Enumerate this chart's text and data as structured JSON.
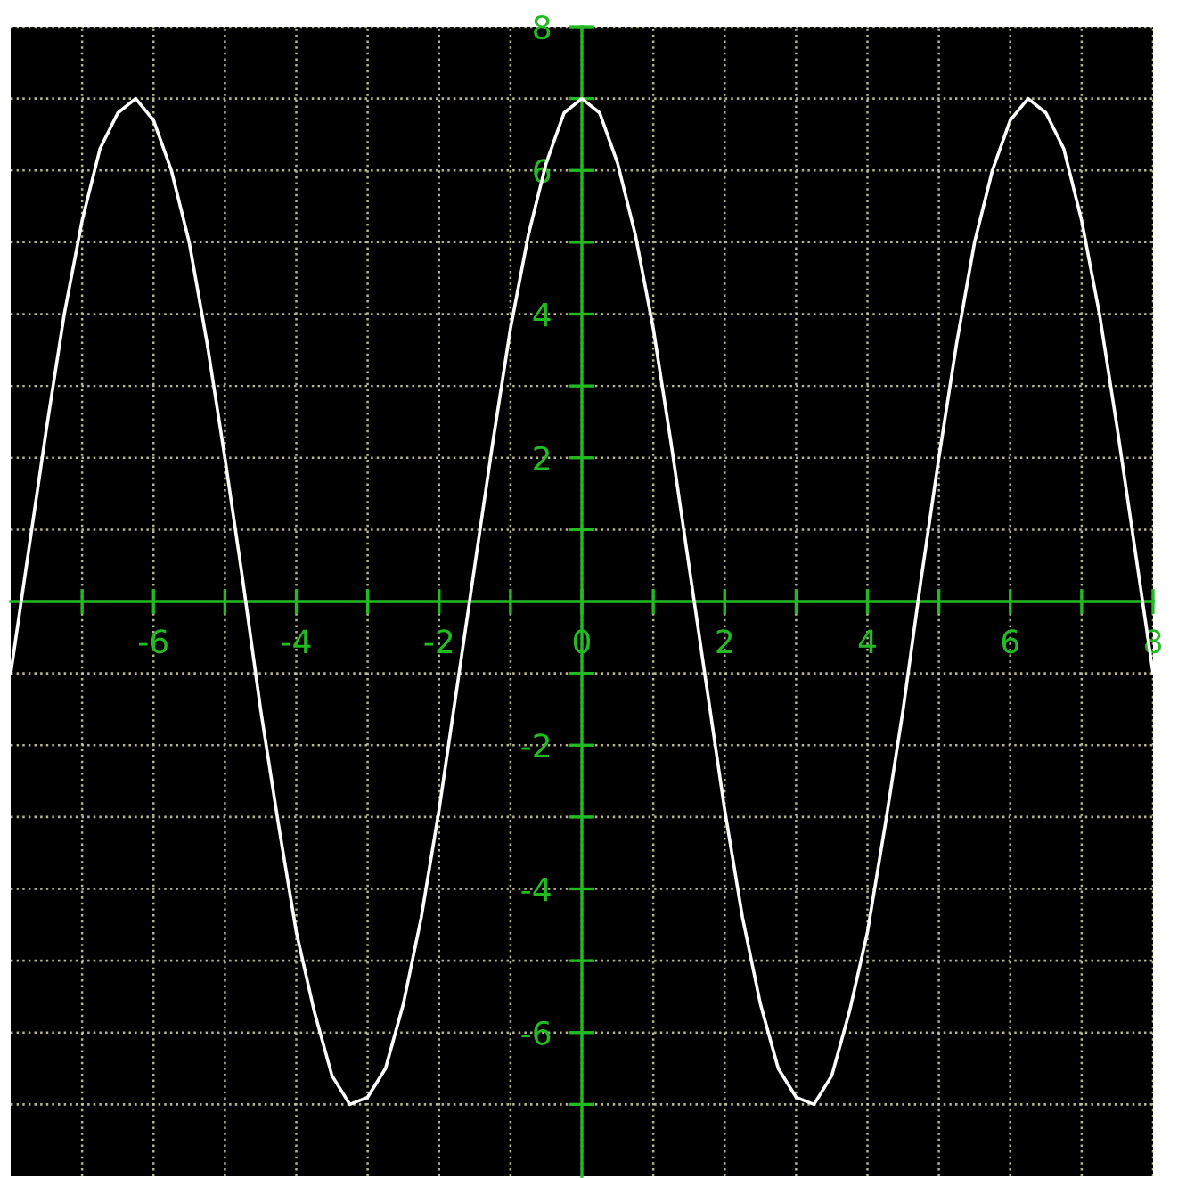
{
  "chart_data": {
    "type": "line",
    "x": [
      -8,
      -7.75,
      -7.5,
      -7.25,
      -7,
      -6.75,
      -6.5,
      -6.25,
      -6,
      -5.75,
      -5.5,
      -5.25,
      -5,
      -4.75,
      -4.5,
      -4.25,
      -4,
      -3.75,
      -3.5,
      -3.25,
      -3,
      -2.75,
      -2.5,
      -2.25,
      -2,
      -1.75,
      -1.5,
      -1.25,
      -1,
      -0.75,
      -0.5,
      -0.25,
      0,
      0.25,
      0.5,
      0.75,
      1,
      1.25,
      1.5,
      1.75,
      2,
      2.25,
      2.5,
      2.75,
      3,
      3.25,
      3.5,
      3.75,
      4,
      4.25,
      4.5,
      4.75,
      5,
      5.25,
      5.5,
      5.75,
      6,
      6.25,
      6.5,
      6.75,
      7,
      7.25,
      7.5,
      7.75,
      8
    ],
    "series": [
      {
        "color": "#ffffff",
        "values": [
          -1.0,
          0.7,
          2.4,
          4.0,
          5.3,
          6.3,
          6.8,
          7.0,
          6.7,
          6.0,
          5.0,
          3.6,
          2.0,
          0.3,
          -1.5,
          -3.1,
          -4.6,
          -5.7,
          -6.6,
          -7.0,
          -6.9,
          -6.5,
          -5.6,
          -4.4,
          -2.9,
          -1.2,
          0.5,
          2.2,
          3.8,
          5.1,
          6.1,
          6.8,
          7.0,
          6.8,
          6.1,
          5.1,
          3.8,
          2.2,
          0.5,
          -1.2,
          -2.9,
          -4.4,
          -5.6,
          -6.5,
          -6.9,
          -7.0,
          -6.6,
          -5.7,
          -4.6,
          -3.1,
          -1.5,
          0.3,
          2.0,
          3.6,
          5.0,
          6.0,
          6.7,
          7.0,
          6.8,
          6.3,
          5.3,
          4.0,
          2.4,
          0.7,
          -1.0
        ]
      }
    ],
    "xlim": [
      -8,
      8
    ],
    "ylim": [
      -8,
      8
    ],
    "xticks": [
      {
        "value": -7,
        "label": null
      },
      -6,
      {
        "value": -5,
        "label": null
      },
      -4,
      {
        "value": -3,
        "label": null
      },
      -2,
      {
        "value": -1,
        "label": null
      },
      0,
      {
        "value": 1,
        "label": null
      },
      2,
      {
        "value": 3,
        "label": null
      },
      4,
      {
        "value": 5,
        "label": null
      },
      6,
      {
        "value": 7,
        "label": null
      },
      8
    ],
    "yticks": [
      {
        "value": -7,
        "label": null
      },
      -6,
      {
        "value": -5,
        "label": null
      },
      -4,
      {
        "value": -3,
        "label": null
      },
      -2,
      {
        "value": -1,
        "label": null
      },
      {
        "value": 1,
        "label": null
      },
      2,
      {
        "value": 3,
        "label": null
      },
      4,
      {
        "value": 5,
        "label": null
      },
      6,
      {
        "value": 7,
        "label": null
      },
      8
    ],
    "grid": true,
    "marker": "none",
    "line_style": "solid"
  }
}
